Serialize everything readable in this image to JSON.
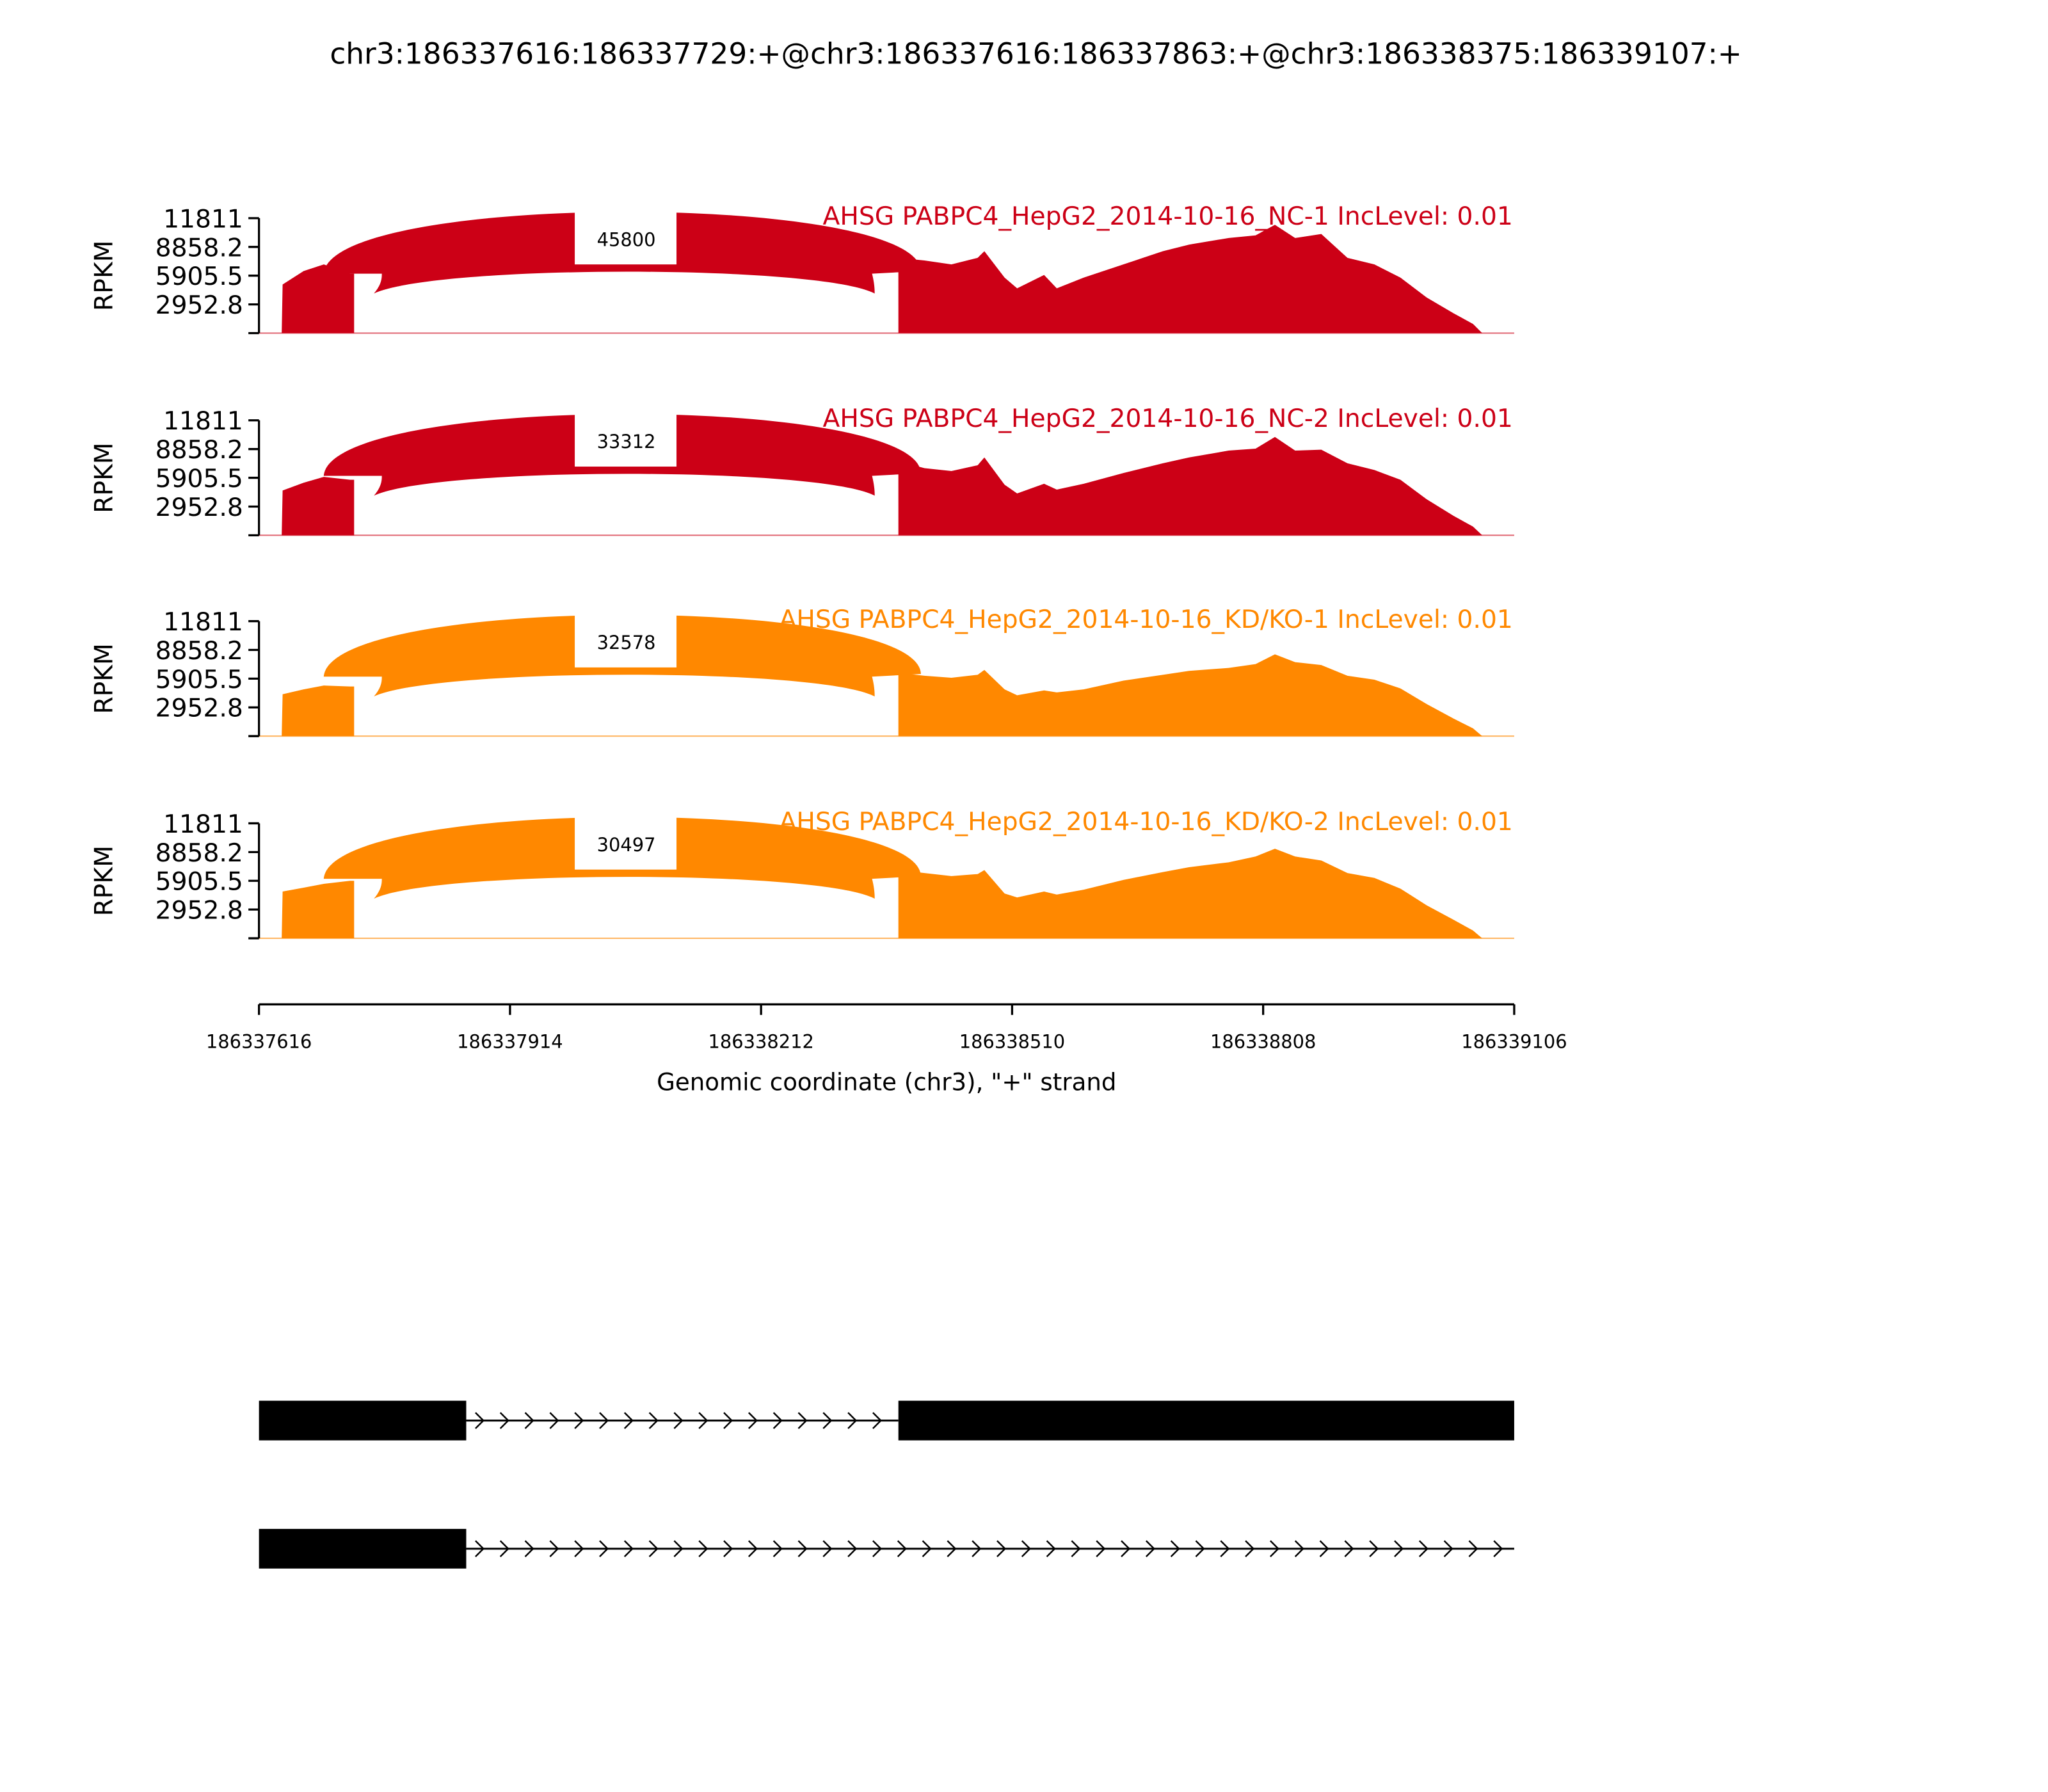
{
  "chart_data": {
    "type": "area",
    "title": "chr3:186337616:186337729:+@chr3:186337616:186337863:+@chr3:186338375:186339107:+",
    "ylabel": "RPKM",
    "xlabel": "Genomic coordinate (chr3), \"+\" strand",
    "xlim": [
      186337616,
      186339106
    ],
    "ylim": [
      0,
      11811
    ],
    "yticks": [
      "11811",
      "8858.2",
      "5905.5",
      "2952.8"
    ],
    "ytick_values": [
      11811,
      8858.2,
      5905.5,
      2952.8,
      0
    ],
    "xticks": [
      "186337616",
      "186337914",
      "186338212",
      "186338510",
      "186338808",
      "186339106"
    ],
    "xtick_values": [
      186337616,
      186337914,
      186338212,
      186338510,
      186338808,
      186339106
    ],
    "positions_exon1": [
      186337643,
      186337644,
      186337669,
      186337693,
      186337724,
      186337729
    ],
    "positions_exon2": [
      186338375,
      186338406,
      186338438,
      186338469,
      186338477,
      186338501,
      186338516,
      186338548,
      186338563,
      186338595,
      186338642,
      186338689,
      186338720,
      186338767,
      186338799,
      186338822,
      186338846,
      186338877,
      186338908,
      186338940,
      186338971,
      186339002,
      186339034,
      186339057,
      186339068
    ],
    "series": [
      {
        "name": "AHSG PABPC4_HepG2_2014-10-16_NC-1 IncLevel: 0.01",
        "color": "#cc0016",
        "junction_count": "45800",
        "exon1": [
          0,
          5000,
          6380,
          7060,
          6110,
          6110
        ],
        "exon2": [
          7740,
          7470,
          7060,
          7740,
          8420,
          5700,
          4600,
          5970,
          4600,
          5700,
          7060,
          8420,
          9100,
          9770,
          10050,
          11130,
          9770,
          10180,
          7740,
          7060,
          5700,
          3670,
          2040,
          950,
          0
        ]
      },
      {
        "name": "AHSG PABPC4_HepG2_2014-10-16_NC-2 IncLevel: 0.01",
        "color": "#cc0016",
        "junction_count": "33312",
        "exon1": [
          0,
          4600,
          5400,
          6000,
          5700,
          5700
        ],
        "exon2": [
          7600,
          6900,
          6600,
          7200,
          8000,
          5200,
          4300,
          5300,
          4700,
          5300,
          6400,
          7400,
          8000,
          8700,
          8900,
          10100,
          8700,
          8800,
          7400,
          6700,
          5700,
          3700,
          2000,
          900,
          0
        ]
      },
      {
        "name": "AHSG PABPC4_HepG2_2014-10-16_KD/KO-1 IncLevel: 0.01",
        "color": "#ff8800",
        "junction_count": "32578",
        "exon1": [
          0,
          4300,
          4800,
          5200,
          5100,
          5100
        ],
        "exon2": [
          6500,
          6200,
          6000,
          6300,
          6800,
          4800,
          4200,
          4700,
          4500,
          4800,
          5700,
          6300,
          6700,
          7000,
          7400,
          8400,
          7600,
          7300,
          6200,
          5800,
          4900,
          3300,
          1800,
          800,
          0
        ]
      },
      {
        "name": "AHSG PABPC4_HepG2_2014-10-16_KD/KO-2 IncLevel: 0.01",
        "color": "#ff8800",
        "junction_count": "30497",
        "exon1": [
          0,
          4800,
          5200,
          5600,
          5900,
          5900
        ],
        "exon2": [
          7000,
          6700,
          6400,
          6600,
          7000,
          4600,
          4200,
          4800,
          4500,
          5000,
          6000,
          6800,
          7300,
          7800,
          8400,
          9200,
          8400,
          8000,
          6700,
          6200,
          5100,
          3400,
          1900,
          800,
          0
        ]
      }
    ],
    "transcripts": [
      {
        "exons": [
          [
            186337616,
            186337862
          ],
          [
            186338375,
            186339106
          ]
        ],
        "intron": [
          186337862,
          186338375
        ]
      },
      {
        "exons": [
          [
            186337616,
            186337862
          ]
        ],
        "intron": [
          186337862,
          186339106
        ]
      }
    ]
  }
}
